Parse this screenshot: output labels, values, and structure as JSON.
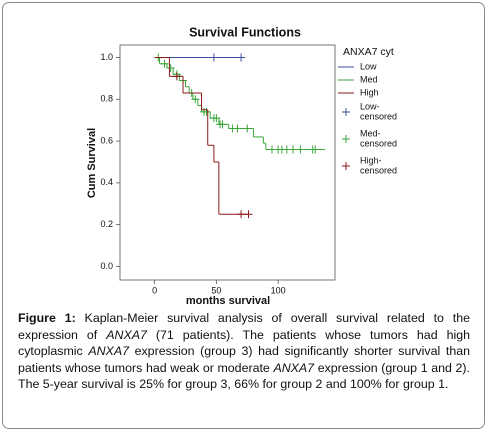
{
  "chart_data": {
    "type": "kaplan-meier",
    "title": "Survival Functions",
    "x_label": "months survival",
    "y_label": "Cum Survival",
    "legend_title": "ANXA7 cyt",
    "xlim": [
      -28,
      146
    ],
    "xticks": [
      0,
      50,
      100
    ],
    "ylim": [
      -0.065,
      1.06
    ],
    "yticks": [
      {
        "value": 0,
        "label": "0.0"
      },
      0.2,
      0.4,
      0.6,
      0.8,
      {
        "value": 1,
        "label": "1.0"
      }
    ],
    "series": [
      {
        "name": "Low",
        "color": "#3b4ea0",
        "x": [
          0,
          72
        ],
        "values": [
          1,
          1
        ],
        "censored_label": [
          "Low-",
          "censored"
        ],
        "censored": {
          "x": [
            48,
            70
          ],
          "values": [
            1,
            1
          ]
        }
      },
      {
        "name": "Med",
        "color": "#3aa63a",
        "x": [
          0,
          4,
          10,
          15,
          20,
          25,
          28,
          31,
          35,
          38,
          45,
          52,
          60,
          80,
          88,
          90,
          138
        ],
        "values": [
          1,
          0.97,
          0.95,
          0.92,
          0.89,
          0.86,
          0.83,
          0.8,
          0.77,
          0.74,
          0.71,
          0.68,
          0.66,
          0.62,
          0.59,
          0.56,
          0.56
        ],
        "censored_label": [
          "Med-",
          "censored"
        ],
        "censored": {
          "x": [
            3,
            8,
            13,
            18,
            23,
            30,
            33,
            40,
            42,
            48,
            50,
            53,
            55,
            63,
            67,
            75,
            95,
            100,
            103,
            107,
            112,
            118,
            128,
            130
          ],
          "values": [
            1,
            0.97,
            0.95,
            0.92,
            0.89,
            0.83,
            0.8,
            0.74,
            0.74,
            0.71,
            0.71,
            0.68,
            0.68,
            0.66,
            0.66,
            0.66,
            0.56,
            0.56,
            0.56,
            0.56,
            0.56,
            0.56,
            0.56,
            0.56
          ]
        }
      },
      {
        "name": "High",
        "color": "#8b1a1a",
        "x": [
          0,
          12,
          23,
          38,
          43,
          48,
          52,
          76
        ],
        "values": [
          1,
          0.91,
          0.83,
          0.75,
          0.58,
          0.5,
          0.25,
          0.25
        ],
        "censored_label": [
          "High-",
          "censored"
        ],
        "censored": {
          "x": [
            18,
            70,
            76
          ],
          "values": [
            0.91,
            0.25,
            0.25
          ]
        }
      }
    ]
  },
  "caption": [
    {
      "text": "Figure 1:",
      "style": "bold"
    },
    {
      "text": " Kaplan-Meier survival analysis of overall survival related to the expression of ",
      "style": "normal"
    },
    {
      "text": "ANXA7",
      "style": "italic"
    },
    {
      "text": " (71 patients). The patients whose tumors had high cytoplasmic ",
      "style": "normal"
    },
    {
      "text": "ANXA7",
      "style": "italic"
    },
    {
      "text": " expression (group 3) had significantly shorter survival than patients whose tumors had weak or moderate ",
      "style": "normal"
    },
    {
      "text": "ANXA7",
      "style": "italic"
    },
    {
      "text": " expression (group 1 and 2). The 5-year survival is 25% for group 3, 66% for group 2 and 100% for group 1.",
      "style": "normal"
    }
  ]
}
